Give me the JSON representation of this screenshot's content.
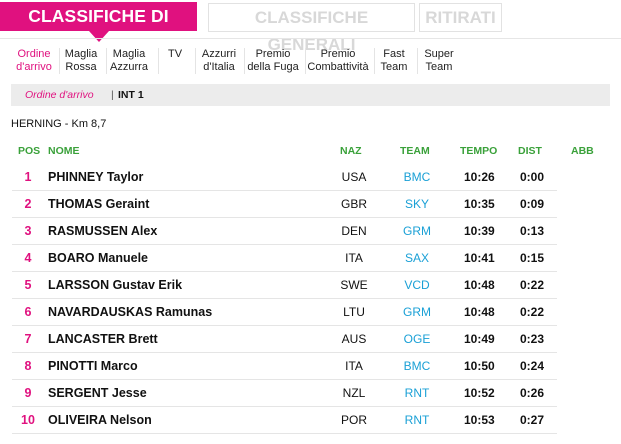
{
  "tabs": {
    "stage": "CLASSIFICHE DI TAPPA",
    "general": "CLASSIFICHE GENERALI",
    "retired": "RITIRATI"
  },
  "subnav": [
    {
      "label": "Ordine\nd'arrivo",
      "active": true
    },
    {
      "label": "Maglia\nRossa",
      "active": false
    },
    {
      "label": "Maglia\nAzzurra",
      "active": false
    },
    {
      "label": "TV",
      "active": false
    },
    {
      "label": "Azzurri\nd'Italia",
      "active": false
    },
    {
      "label": "Premio\ndella Fuga",
      "active": false
    },
    {
      "label": "Premio\nCombattività",
      "active": false
    },
    {
      "label": "Fast\nTeam",
      "active": false
    },
    {
      "label": "Super\nTeam",
      "active": false
    }
  ],
  "breadcrumb": {
    "link": "Ordine d'arrivo",
    "separator": "|",
    "current": "INT 1"
  },
  "stage_line": "HERNING - Km 8,7",
  "table": {
    "headers": {
      "pos": "POS",
      "name": "NOME",
      "naz": "NAZ",
      "team": "TEAM",
      "tempo": "TEMPO",
      "dist": "DIST",
      "abb": "ABB"
    },
    "rows": [
      {
        "pos": "1",
        "name": "PHINNEY Taylor",
        "naz": "USA",
        "team": "BMC",
        "tempo": "10:26",
        "dist": "0:00"
      },
      {
        "pos": "2",
        "name": "THOMAS Geraint",
        "naz": "GBR",
        "team": "SKY",
        "tempo": "10:35",
        "dist": "0:09"
      },
      {
        "pos": "3",
        "name": "RASMUSSEN Alex",
        "naz": "DEN",
        "team": "GRM",
        "tempo": "10:39",
        "dist": "0:13"
      },
      {
        "pos": "4",
        "name": "BOARO Manuele",
        "naz": "ITA",
        "team": "SAX",
        "tempo": "10:41",
        "dist": "0:15"
      },
      {
        "pos": "5",
        "name": "LARSSON Gustav Erik",
        "naz": "SWE",
        "team": "VCD",
        "tempo": "10:48",
        "dist": "0:22"
      },
      {
        "pos": "6",
        "name": "NAVARDAUSKAS Ramunas",
        "naz": "LTU",
        "team": "GRM",
        "tempo": "10:48",
        "dist": "0:22"
      },
      {
        "pos": "7",
        "name": "LANCASTER Brett",
        "naz": "AUS",
        "team": "OGE",
        "tempo": "10:49",
        "dist": "0:23"
      },
      {
        "pos": "8",
        "name": "PINOTTI Marco",
        "naz": "ITA",
        "team": "BMC",
        "tempo": "10:50",
        "dist": "0:24"
      },
      {
        "pos": "9",
        "name": "SERGENT Jesse",
        "naz": "NZL",
        "team": "RNT",
        "tempo": "10:52",
        "dist": "0:26"
      },
      {
        "pos": "10",
        "name": "OLIVEIRA Nelson",
        "naz": "POR",
        "team": "RNT",
        "tempo": "10:53",
        "dist": "0:27"
      }
    ]
  },
  "colors": {
    "accent": "#e0117f",
    "header_green": "#3aa13a",
    "team_blue": "#1aa0d6"
  }
}
